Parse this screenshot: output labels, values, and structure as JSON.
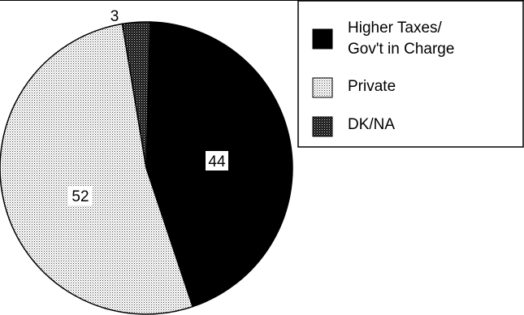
{
  "chart_data": {
    "type": "pie",
    "title": "",
    "slices": [
      {
        "label": "Higher Taxes/\nGov't in Charge",
        "value": 44,
        "value_label": "44",
        "fill": "solid-black"
      },
      {
        "label": "Private",
        "value": 52,
        "value_label": "52",
        "fill": "light-dot-pattern"
      },
      {
        "label": "DK/NA",
        "value": 3,
        "value_label": "3",
        "fill": "dark-dot-pattern"
      }
    ],
    "legend": {
      "placement": "top-right",
      "entries": [
        {
          "line1": "Higher Taxes/",
          "line2": "Gov't in Charge"
        },
        {
          "line1": "Private"
        },
        {
          "line1": "DK/NA"
        }
      ]
    },
    "colors": {
      "dark": "#000000",
      "light": "#ffffff"
    }
  }
}
